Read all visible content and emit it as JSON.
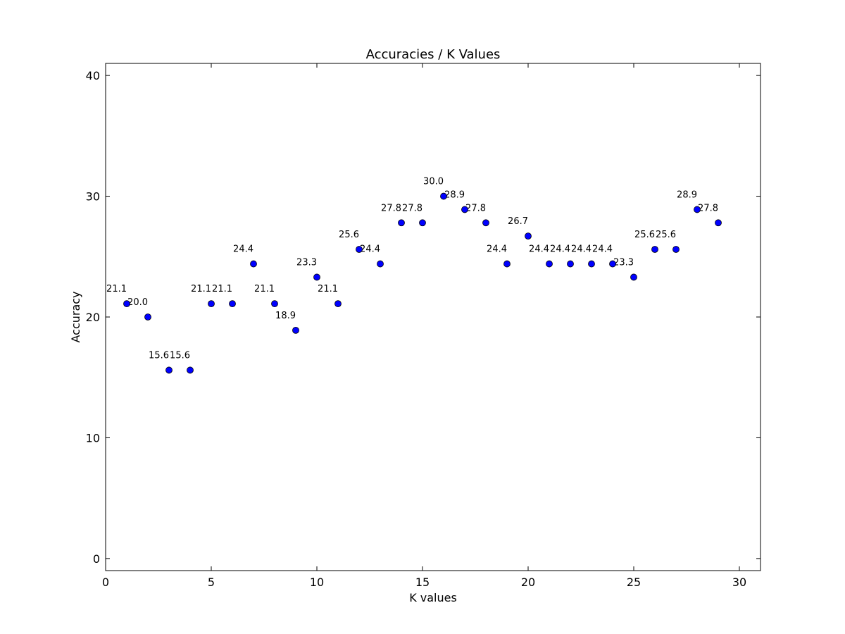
{
  "chart_data": {
    "type": "scatter",
    "title": "Accuracies / K Values",
    "xlabel": "K values",
    "ylabel": "Accuracy",
    "xlim": [
      0,
      31
    ],
    "ylim": [
      -1,
      41
    ],
    "xticks": [
      0,
      5,
      10,
      15,
      20,
      25,
      30
    ],
    "yticks": [
      0,
      10,
      20,
      30,
      40
    ],
    "grid": false,
    "marker_color": "#0000ff",
    "x": [
      1,
      2,
      3,
      4,
      5,
      6,
      7,
      8,
      9,
      10,
      11,
      12,
      13,
      14,
      15,
      16,
      17,
      18,
      19,
      20,
      21,
      22,
      23,
      24,
      25,
      26,
      27,
      28,
      29
    ],
    "y": [
      21.1,
      20.0,
      15.6,
      15.6,
      21.1,
      21.1,
      24.4,
      21.1,
      18.9,
      23.3,
      21.1,
      25.6,
      24.4,
      27.8,
      27.8,
      30.0,
      28.9,
      27.8,
      24.4,
      26.7,
      24.4,
      24.4,
      24.4,
      24.4,
      23.3,
      25.6,
      25.6,
      28.9,
      27.8
    ],
    "labels": [
      "21.1",
      "20.0",
      "15.6",
      "15.6",
      "21.1",
      "21.1",
      "24.4",
      "21.1",
      "18.9",
      "23.3",
      "21.1",
      "25.6",
      "24.4",
      "27.8",
      "27.8",
      "30.0",
      "28.9",
      "27.8",
      "24.4",
      "26.7",
      "24.4",
      "24.4",
      "24.4",
      "24.4",
      "23.3",
      "25.6",
      "25.6",
      "28.9",
      "27.8"
    ]
  }
}
